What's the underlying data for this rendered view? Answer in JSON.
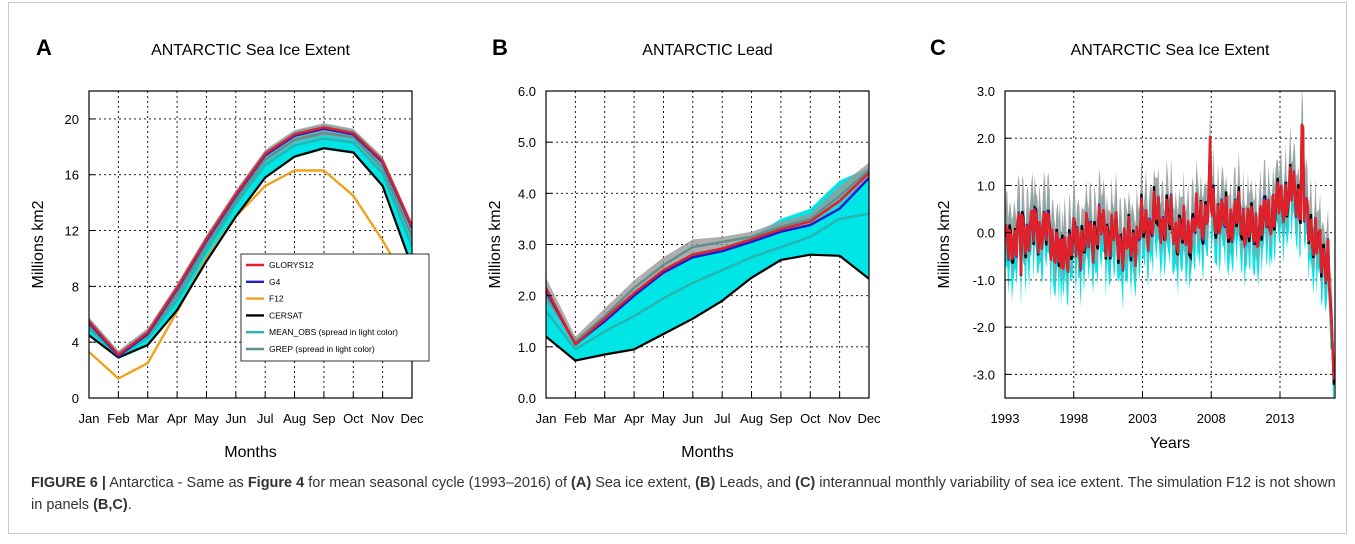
{
  "caption": {
    "label": "FIGURE 6 |",
    "text_1": " Antarctica - Same as ",
    "ref": "Figure 4",
    "text_2": " for mean seasonal cycle (1993–2016) of ",
    "a": "(A)",
    "text_3": " Sea ice extent, ",
    "b": "(B)",
    "text_4": " Leads, and ",
    "c": "(C)",
    "text_5": " interannual monthly variability of sea ice extent. The simulation F12 is not shown in panels ",
    "bc": "(B,C)",
    "text_6": "."
  },
  "colors": {
    "GLORYS12": "#e0202a",
    "G4": "#1c1ccc",
    "F12": "#f0a21e",
    "CERSAT": "#000000",
    "MEAN_OBS": "#2ab3b3",
    "GREP": "#5f8f8f",
    "spread_obs": "#00e5e5",
    "spread_grep": "#9a9a9a"
  },
  "chart_data": [
    {
      "panel": "A",
      "type": "line",
      "title": "ANTARCTIC Sea Ice Extent",
      "xlabel": "Months",
      "ylabel": "Millions km2",
      "categories": [
        "Jan",
        "Feb",
        "Mar",
        "Apr",
        "May",
        "Jun",
        "Jul",
        "Aug",
        "Sep",
        "Oct",
        "Nov",
        "Dec"
      ],
      "ylim": [
        0,
        22
      ],
      "yticks": [
        "0",
        "4",
        "8",
        "12",
        "16",
        "20"
      ],
      "grid": true,
      "legend_position": "center-right",
      "legend": [
        "GLORYS12",
        "G4",
        "F12",
        "CERSAT",
        "MEAN_OBS (spread in light color)",
        "GREP (spread in light color)"
      ],
      "series": [
        {
          "name": "GLORYS12",
          "values": [
            5.5,
            3.1,
            4.7,
            7.9,
            11.4,
            14.6,
            17.5,
            18.9,
            19.4,
            19.0,
            17.0,
            12.3
          ]
        },
        {
          "name": "G4",
          "values": [
            5.4,
            3.0,
            4.6,
            7.8,
            11.3,
            14.5,
            17.4,
            18.8,
            19.3,
            18.9,
            16.9,
            12.2
          ]
        },
        {
          "name": "F12",
          "values": [
            3.3,
            1.4,
            2.5,
            6.2,
            10.0,
            13.0,
            15.2,
            16.3,
            16.3,
            14.5,
            11.3,
            7.6
          ]
        },
        {
          "name": "CERSAT",
          "values": [
            4.5,
            2.9,
            3.8,
            6.3,
            9.8,
            13.0,
            15.8,
            17.3,
            17.9,
            17.6,
            15.2,
            9.4
          ]
        },
        {
          "name": "MEAN_OBS (spread in light color)",
          "values": [
            5.0,
            3.0,
            4.3,
            7.0,
            10.6,
            13.9,
            16.7,
            18.1,
            18.6,
            18.3,
            16.1,
            10.9
          ]
        },
        {
          "name": "GREP (spread in light color)",
          "values": [
            5.2,
            3.1,
            4.5,
            7.4,
            11.0,
            14.2,
            17.1,
            18.5,
            19.0,
            18.7,
            16.5,
            11.6
          ]
        }
      ],
      "obs_spread": {
        "low": [
          4.4,
          2.8,
          3.7,
          6.2,
          9.7,
          12.9,
          15.7,
          17.2,
          17.8,
          17.5,
          15.1,
          9.3
        ],
        "high": [
          5.7,
          3.3,
          4.9,
          8.1,
          11.6,
          14.8,
          17.7,
          19.1,
          19.6,
          19.2,
          17.2,
          12.5
        ]
      },
      "grep_spread": {
        "low": [
          4.9,
          2.9,
          4.3,
          7.2,
          10.8,
          14.0,
          16.9,
          18.3,
          18.8,
          18.5,
          16.3,
          11.3
        ],
        "high": [
          5.8,
          3.4,
          5.0,
          8.2,
          11.7,
          14.9,
          17.8,
          19.2,
          19.7,
          19.3,
          17.3,
          12.6
        ]
      }
    },
    {
      "panel": "B",
      "type": "line",
      "title": "ANTARCTIC Lead",
      "xlabel": "Months",
      "ylabel": "Millions km2",
      "categories": [
        "Jan",
        "Feb",
        "Mar",
        "Apr",
        "May",
        "Jun",
        "Jul",
        "Aug",
        "Sep",
        "Oct",
        "Nov",
        "Dec"
      ],
      "ylim": [
        0,
        6
      ],
      "yticks": [
        "0.0",
        "1.0",
        "2.0",
        "3.0",
        "4.0",
        "5.0",
        "6.0"
      ],
      "grid": true,
      "series": [
        {
          "name": "GLORYS12",
          "values": [
            2.15,
            1.05,
            1.55,
            2.05,
            2.5,
            2.8,
            2.92,
            3.1,
            3.3,
            3.45,
            3.85,
            4.4
          ]
        },
        {
          "name": "G4",
          "values": [
            2.1,
            1.05,
            1.5,
            2.0,
            2.45,
            2.75,
            2.87,
            3.05,
            3.25,
            3.38,
            3.7,
            4.3
          ]
        },
        {
          "name": "CERSAT",
          "values": [
            1.2,
            0.73,
            0.85,
            0.95,
            1.25,
            1.55,
            1.9,
            2.35,
            2.7,
            2.8,
            2.78,
            2.33
          ]
        },
        {
          "name": "MEAN_OBS (spread in light color)",
          "values": [
            1.7,
            0.95,
            1.3,
            1.6,
            1.95,
            2.25,
            2.5,
            2.75,
            2.95,
            3.15,
            3.5,
            3.6
          ]
        },
        {
          "name": "GREP (spread in light color)",
          "values": [
            2.0,
            1.1,
            1.6,
            2.15,
            2.6,
            2.95,
            3.05,
            3.15,
            3.35,
            3.5,
            3.95,
            4.45
          ]
        }
      ],
      "obs_spread": {
        "low": [
          1.2,
          0.73,
          0.85,
          0.95,
          1.25,
          1.55,
          1.9,
          2.35,
          2.7,
          2.8,
          2.78,
          2.33
        ],
        "high": [
          2.2,
          1.1,
          1.6,
          2.05,
          2.5,
          2.85,
          2.95,
          3.15,
          3.5,
          3.7,
          4.25,
          4.5
        ]
      },
      "grep_spread": {
        "low": [
          1.9,
          1.0,
          1.5,
          2.0,
          2.4,
          2.75,
          2.85,
          3.05,
          3.25,
          3.4,
          3.8,
          4.3
        ],
        "high": [
          2.35,
          1.2,
          1.75,
          2.3,
          2.75,
          3.1,
          3.15,
          3.25,
          3.45,
          3.6,
          4.15,
          4.6
        ]
      }
    },
    {
      "panel": "C",
      "type": "line",
      "title": "ANTARCTIC Sea Ice Extent",
      "xlabel": "Years",
      "ylabel": "Millions km2",
      "xticks": [
        "1993",
        "1998",
        "2003",
        "2008",
        "2013"
      ],
      "xlim": [
        1993,
        2017
      ],
      "ylim": [
        -3.5,
        3.0
      ],
      "yticks": [
        "-3.0",
        "-2.0",
        "-1.0",
        "0.0",
        "1.0",
        "2.0",
        "3.0"
      ],
      "grid": true,
      "annual_mean": {
        "years": [
          1993,
          1994,
          1995,
          1996,
          1997,
          1998,
          1999,
          2000,
          2001,
          2002,
          2003,
          2004,
          2005,
          2006,
          2007,
          2008,
          2009,
          2010,
          2011,
          2012,
          2013,
          2014,
          2015,
          2016
        ],
        "values": [
          -0.3,
          0.0,
          0.1,
          0.1,
          -0.4,
          -0.2,
          -0.1,
          0.1,
          -0.1,
          -0.3,
          0.1,
          0.3,
          0.2,
          -0.1,
          0.2,
          0.5,
          0.2,
          0.3,
          0.0,
          0.3,
          0.6,
          0.9,
          0.3,
          -0.5
        ],
        "end_value": -3.1
      }
    }
  ]
}
